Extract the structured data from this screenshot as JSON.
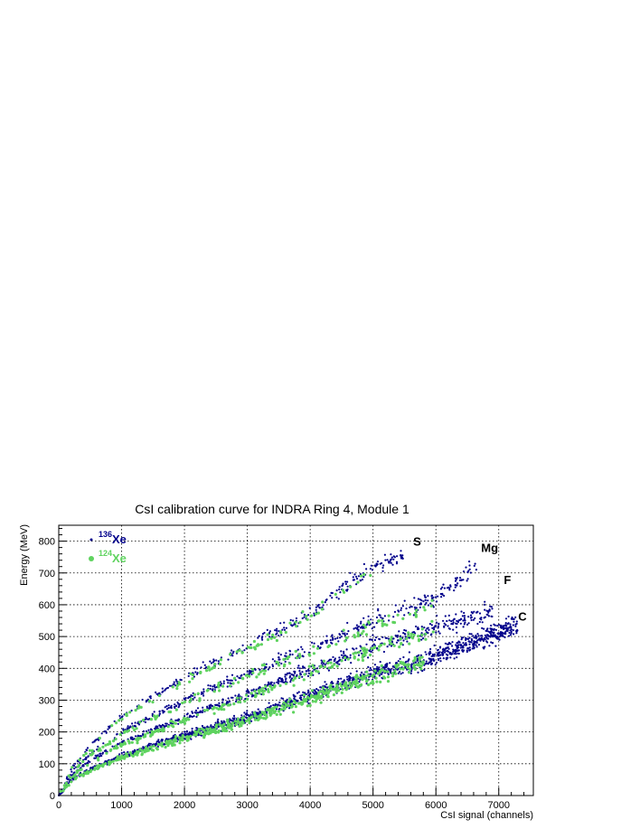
{
  "chart_data": {
    "type": "scatter",
    "title": "CsI calibration curve for INDRA Ring 4, Module 1",
    "xlabel": "CsI signal (channels)",
    "ylabel": "Energy (MeV)",
    "xlim": [
      0,
      7550
    ],
    "ylim": [
      0,
      850
    ],
    "x_ticks": [
      "0",
      "1000",
      "2000",
      "3000",
      "4000",
      "5000",
      "6000",
      "7000"
    ],
    "y_ticks": [
      "0",
      "100",
      "200",
      "300",
      "400",
      "500",
      "600",
      "700",
      "800"
    ],
    "grid": true,
    "legend": {
      "placement": "top-left",
      "entries": [
        {
          "mass": "136",
          "element": "Xe",
          "color": "#00008b",
          "marker": "small"
        },
        {
          "mass": "124",
          "element": "Xe",
          "color": "#5fd35f",
          "marker": "large"
        }
      ]
    },
    "band_labels": [
      {
        "text": "S",
        "x": 5640,
        "y": 800
      },
      {
        "text": "Mg",
        "x": 6720,
        "y": 780
      },
      {
        "text": "F",
        "x": 7080,
        "y": 680
      },
      {
        "text": "C",
        "x": 7310,
        "y": 565
      }
    ],
    "series": [
      {
        "name": "136Xe",
        "color": "#00008b",
        "bands": [
          {
            "element": "C",
            "points": [
              [
                0,
                0
              ],
              [
                200,
                48
              ],
              [
                500,
                82
              ],
              [
                1000,
                125
              ],
              [
                2000,
                188
              ],
              [
                3000,
                245
              ],
              [
                4000,
                315
              ],
              [
                5000,
                385
              ],
              [
                5800,
                425
              ],
              [
                6500,
                480
              ],
              [
                7300,
                535
              ]
            ]
          },
          {
            "element": "F",
            "points": [
              [
                0,
                0
              ],
              [
                200,
                62
              ],
              [
                500,
                110
              ],
              [
                1000,
                165
              ],
              [
                2000,
                245
              ],
              [
                3000,
                318
              ],
              [
                4000,
                395
              ],
              [
                5000,
                470
              ],
              [
                6000,
                530
              ],
              [
                6900,
                580
              ]
            ]
          },
          {
            "element": "Mg",
            "points": [
              [
                0,
                0
              ],
              [
                200,
                72
              ],
              [
                500,
                132
              ],
              [
                1000,
                200
              ],
              [
                2000,
                300
              ],
              [
                3000,
                385
              ],
              [
                4000,
                465
              ],
              [
                5000,
                545
              ],
              [
                6000,
                620
              ],
              [
                6700,
                735
              ]
            ]
          },
          {
            "element": "S",
            "points": [
              [
                0,
                0
              ],
              [
                200,
                85
              ],
              [
                500,
                155
              ],
              [
                1000,
                250
              ],
              [
                2000,
                370
              ],
              [
                3000,
                470
              ],
              [
                4000,
                570
              ],
              [
                4500,
                650
              ],
              [
                5000,
                720
              ],
              [
                5500,
                760
              ]
            ]
          }
        ]
      },
      {
        "name": "124Xe",
        "color": "#5fd35f",
        "bands": [
          {
            "element": "C",
            "points": [
              [
                0,
                0
              ],
              [
                200,
                45
              ],
              [
                500,
                78
              ],
              [
                1000,
                120
              ],
              [
                2000,
                180
              ],
              [
                3000,
                238
              ],
              [
                4000,
                305
              ],
              [
                5000,
                375
              ],
              [
                5800,
                420
              ]
            ]
          },
          {
            "element": "F",
            "points": [
              [
                0,
                0
              ],
              [
                200,
                58
              ],
              [
                500,
                105
              ],
              [
                1000,
                158
              ],
              [
                2000,
                238
              ],
              [
                3000,
                310
              ],
              [
                4000,
                385
              ],
              [
                5000,
                460
              ],
              [
                6000,
                520
              ]
            ]
          },
          {
            "element": "Mg",
            "points": [
              [
                0,
                0
              ],
              [
                200,
                70
              ],
              [
                500,
                128
              ],
              [
                1000,
                195
              ],
              [
                2000,
                292
              ],
              [
                3000,
                378
              ],
              [
                4000,
                455
              ],
              [
                5000,
                530
              ],
              [
                6000,
                600
              ]
            ]
          },
          {
            "element": "S",
            "points": [
              [
                0,
                0
              ],
              [
                200,
                80
              ],
              [
                500,
                150
              ],
              [
                1000,
                242
              ],
              [
                2000,
                360
              ],
              [
                3000,
                460
              ],
              [
                4000,
                560
              ],
              [
                4500,
                640
              ],
              [
                5000,
                710
              ]
            ]
          }
        ]
      }
    ]
  }
}
